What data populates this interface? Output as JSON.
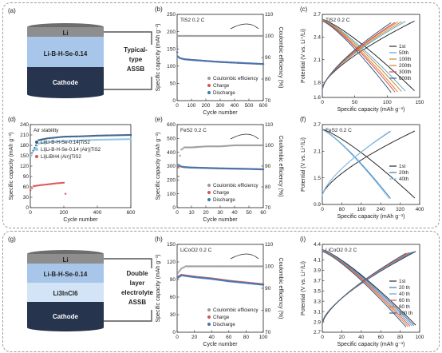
{
  "panels": {
    "a": {
      "letter": "(a)",
      "layers": [
        "Li",
        "Li-B-H-Se-0.14",
        "Cathode"
      ],
      "side_label": [
        "Typical-",
        "type",
        "ASSB"
      ]
    },
    "g": {
      "letter": "(g)",
      "layers": [
        "Li",
        "Li-B-H-Se-0.14",
        "Li3InCl6",
        "Cathode"
      ],
      "side_label": [
        "Double",
        "layer",
        "electrolyte",
        "ASSB"
      ]
    }
  },
  "chart_data": [
    {
      "id": "b",
      "letter": "(b)",
      "type": "scatter",
      "annotation": "TiS2  0.2 C",
      "xlabel": "Cycle number",
      "ylabel": "Specific capacity (mAh g⁻¹)",
      "ylabel_right": "Coulombic efficiency (%)",
      "xlim": [
        0,
        600
      ],
      "ylim": [
        0,
        250
      ],
      "ylim_right": [
        70,
        110
      ],
      "xticks": [
        0,
        100,
        200,
        300,
        400,
        500,
        600
      ],
      "yticks": [
        0,
        50,
        100,
        150,
        200,
        250
      ],
      "yticks_right": [
        70,
        80,
        90,
        100,
        110
      ],
      "legend": [
        "Coulombic efficiency",
        "Charge",
        "Discharge"
      ],
      "series": [
        {
          "name": "Coulombic efficiency",
          "axis": "right",
          "color": "#9a9a9a",
          "x": [
            1,
            5,
            20,
            50,
            100,
            200,
            300,
            400,
            500,
            600
          ],
          "y": [
            95,
            100,
            100,
            100,
            100,
            100,
            100,
            100,
            100,
            100
          ]
        },
        {
          "name": "Charge",
          "axis": "left",
          "color": "#d9534f",
          "x": [
            1,
            5,
            20,
            50,
            100,
            200,
            300,
            400,
            500,
            600
          ],
          "y": [
            140,
            128,
            123,
            120,
            118,
            115,
            112,
            110,
            108,
            106
          ]
        },
        {
          "name": "Discharge",
          "axis": "left",
          "color": "#3b78b8",
          "x": [
            1,
            5,
            20,
            50,
            100,
            200,
            300,
            400,
            500,
            600
          ],
          "y": [
            140,
            128,
            123,
            120,
            118,
            115,
            112,
            110,
            108,
            106
          ]
        }
      ]
    },
    {
      "id": "c",
      "letter": "(c)",
      "type": "line",
      "annotation": "TiS2  0.2 C",
      "xlabel": "Specific capacity (mAh g⁻¹)",
      "ylabel": "Potential (V vs. Li⁺/Li)",
      "xlim": [
        0,
        150
      ],
      "ylim": [
        1.6,
        2.7
      ],
      "xticks": [
        0,
        50,
        100,
        150
      ],
      "yticks": [
        1.6,
        1.8,
        2.1,
        2.4,
        2.7
      ],
      "series": [
        {
          "name": "1st",
          "color": "#2b2b2b",
          "capacity": 142
        },
        {
          "name": "50th",
          "color": "#5aa6d6",
          "capacity": 128
        },
        {
          "name": "100th",
          "color": "#c8902a",
          "capacity": 122
        },
        {
          "name": "200th",
          "color": "#e07b39",
          "capacity": 116
        },
        {
          "name": "300th",
          "color": "#d9534f",
          "capacity": 112
        },
        {
          "name": "600th",
          "color": "#3a5f8a",
          "capacity": 106
        }
      ]
    },
    {
      "id": "d",
      "letter": "(d)",
      "type": "scatter",
      "annotation": "Air stability",
      "xlabel": "Cycle number",
      "ylabel": "Specific capacity (mAh g⁻¹)",
      "xlim": [
        0,
        600
      ],
      "ylim": [
        0,
        240
      ],
      "xticks": [
        0,
        200,
        400,
        600
      ],
      "yticks": [
        0,
        30,
        60,
        90,
        120,
        150,
        180,
        210,
        240
      ],
      "legend": [
        "Li|Li-B-H-Se-0.14|TiS2",
        "Li|Li-B-H-Se-0.14 (Air)|TiS2",
        "Li|LiBH4 (Air)|TiS2"
      ],
      "series": [
        {
          "name": "Li|Li-B-H-Se-0.14|TiS2",
          "color": "#3a5f8a",
          "x": [
            1,
            50,
            100,
            200,
            300,
            400,
            500,
            600
          ],
          "y": [
            150,
            195,
            200,
            205,
            206,
            208,
            209,
            210
          ]
        },
        {
          "name": "Li|Li-B-H-Se-0.14 (Air)|TiS2",
          "color": "#8ec6e6",
          "x": [
            1,
            50,
            100,
            200,
            300,
            400,
            500,
            600
          ],
          "y": [
            150,
            185,
            190,
            192,
            194,
            196,
            197,
            198
          ]
        },
        {
          "name": "Li|LiBH4 (Air)|TiS2",
          "color": "#d9534f",
          "x": [
            1,
            20,
            60,
            100,
            150,
            200,
            210
          ],
          "y": [
            50,
            62,
            65,
            67,
            70,
            72,
            40
          ]
        }
      ]
    },
    {
      "id": "e",
      "letter": "(e)",
      "type": "scatter",
      "annotation": "FeS2  0.2 C",
      "xlabel": "Cycle number",
      "ylabel": "Specific capacity (mAh g⁻¹)",
      "ylabel_right": "Coulombic efficiency (%)",
      "xlim": [
        0,
        60
      ],
      "ylim": [
        0,
        600
      ],
      "ylim_right": [
        70,
        110
      ],
      "xticks": [
        0,
        10,
        20,
        30,
        40,
        50,
        60
      ],
      "yticks": [
        0,
        100,
        200,
        300,
        400,
        500,
        600
      ],
      "yticks_right": [
        70,
        80,
        90,
        100,
        110
      ],
      "legend": [
        "Coulombic efficiency",
        "Charge",
        "Discharge"
      ],
      "series": [
        {
          "name": "Coulombic efficiency",
          "axis": "right",
          "color": "#9a9a9a",
          "x": [
            1,
            2,
            3,
            5,
            10,
            20,
            30,
            40,
            50,
            60
          ],
          "y": [
            85,
            95,
            98,
            99,
            99,
            99.5,
            99.5,
            100,
            100,
            100
          ]
        },
        {
          "name": "Charge",
          "axis": "left",
          "color": "#d9534f",
          "x": [
            1,
            2,
            3,
            5,
            10,
            20,
            30,
            40,
            50,
            60
          ],
          "y": [
            290,
            300,
            296,
            292,
            289,
            286,
            283,
            281,
            279,
            276
          ]
        },
        {
          "name": "Discharge",
          "axis": "left",
          "color": "#3b78b8",
          "x": [
            1,
            2,
            3,
            5,
            10,
            20,
            30,
            40,
            50,
            60
          ],
          "y": [
            310,
            302,
            297,
            293,
            290,
            287,
            284,
            282,
            280,
            277
          ]
        }
      ]
    },
    {
      "id": "f",
      "letter": "(f)",
      "type": "line",
      "annotation": "FeS2  0.2 C",
      "xlabel": "Specific capacity (mAh g⁻¹)",
      "ylabel": "Potential (V vs. Li⁺/Li)",
      "xlim": [
        0,
        400
      ],
      "ylim": [
        0.9,
        2.7
      ],
      "xticks": [
        0,
        80,
        160,
        240,
        320,
        400
      ],
      "yticks": [
        0.9,
        1.5,
        2.1,
        2.7
      ],
      "series": [
        {
          "name": "1st",
          "color": "#2b2b2b",
          "capacity": 380
        },
        {
          "name": "20th",
          "color": "#3b78b8",
          "capacity": 280
        },
        {
          "name": "40th",
          "color": "#8ec6e6",
          "capacity": 275
        }
      ]
    },
    {
      "id": "h",
      "letter": "(h)",
      "type": "scatter",
      "annotation": "LiCoO2  0.2 C",
      "xlabel": "Cycle number",
      "ylabel": "Specific capacity (mAh g⁻¹)",
      "ylabel_right": "Coulombic efficiency (%)",
      "xlim": [
        0,
        100
      ],
      "ylim": [
        0,
        150
      ],
      "ylim_right": [
        70,
        110
      ],
      "xticks": [
        0,
        20,
        40,
        60,
        80,
        100
      ],
      "yticks": [
        0,
        30,
        60,
        90,
        120,
        150
      ],
      "yticks_right": [
        70,
        80,
        90,
        100,
        110
      ],
      "legend": [
        "Coulombic efficiency",
        "Charge",
        "Discharge"
      ],
      "series": [
        {
          "name": "Coulombic efficiency",
          "axis": "right",
          "color": "#9a9a9a",
          "x": [
            1,
            5,
            10,
            20,
            40,
            60,
            80,
            100
          ],
          "y": [
            97,
            99,
            100,
            100,
            100,
            100,
            100,
            100
          ]
        },
        {
          "name": "Charge",
          "axis": "left",
          "color": "#d9534f",
          "x": [
            1,
            5,
            10,
            20,
            40,
            60,
            80,
            100
          ],
          "y": [
            95,
            98,
            97,
            95,
            92,
            88,
            85,
            82
          ]
        },
        {
          "name": "Discharge",
          "axis": "left",
          "color": "#3b78b8",
          "x": [
            1,
            5,
            10,
            20,
            40,
            60,
            80,
            100
          ],
          "y": [
            93,
            97,
            96,
            94,
            91,
            87,
            84,
            81
          ]
        }
      ]
    },
    {
      "id": "i",
      "letter": "(i)",
      "type": "line",
      "annotation": "LiCoO2  0.2 C",
      "xlabel": "Specific capacity (mAh g⁻¹)",
      "ylabel": "Potential (V vs. Li⁺/Li)",
      "xlim": [
        0,
        100
      ],
      "ylim": [
        2.7,
        4.4
      ],
      "xticks": [
        0,
        20,
        40,
        60,
        80,
        100
      ],
      "yticks": [
        2.7,
        2.9,
        3.1,
        3.3,
        3.5,
        3.7,
        3.9,
        4.1,
        4.4
      ],
      "series": [
        {
          "name": "1st",
          "color": "#2b2b2b",
          "capacity": 96
        },
        {
          "name": "20 th",
          "color": "#3b78b8",
          "capacity": 94
        },
        {
          "name": "40 th",
          "color": "#5aa6d6",
          "capacity": 92
        },
        {
          "name": "60 th",
          "color": "#d9534f",
          "capacity": 90
        },
        {
          "name": "80 th",
          "color": "#e07b39",
          "capacity": 88
        },
        {
          "name": "100 th",
          "color": "#3a5f8a",
          "capacity": 86
        }
      ]
    }
  ]
}
